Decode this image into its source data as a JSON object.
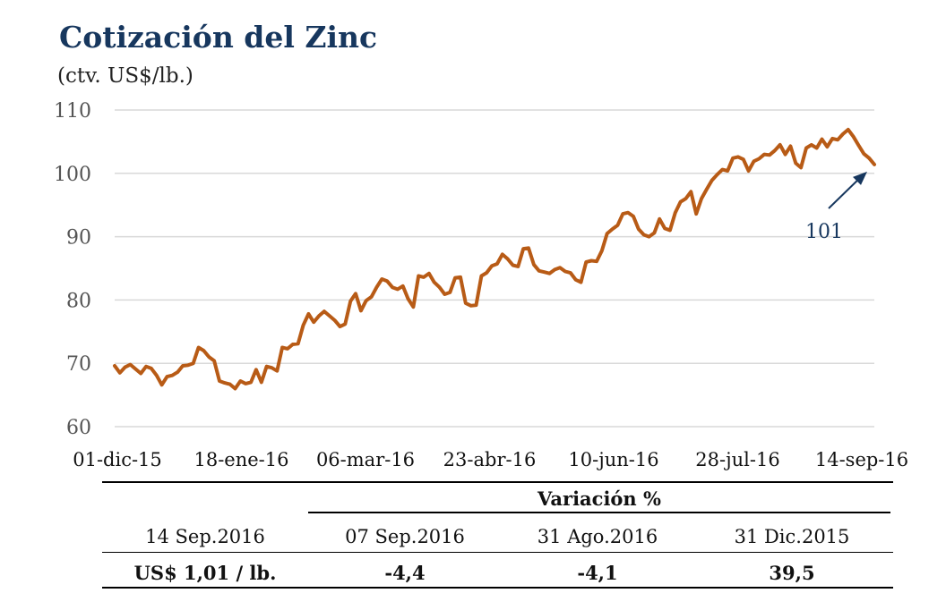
{
  "title": "Cotización del Zinc",
  "subtitle": "(ctv. US$/lb.)",
  "colors": {
    "line": "#b85b16",
    "grid": "#d9d9d9",
    "axis_text": "#555555",
    "title": "#17375e",
    "annotation": "#17375e"
  },
  "chart_data": {
    "type": "line",
    "title": "Cotización del Zinc",
    "ylabel": "(ctv. US$/lb.)",
    "xlabel": "",
    "ylim": [
      60,
      110
    ],
    "yticks": [
      "60",
      "70",
      "80",
      "90",
      "100",
      "110"
    ],
    "xticks": [
      "01-dic-15",
      "18-ene-16",
      "06-mar-16",
      "23-abr-16",
      "10-jun-16",
      "28-jul-16",
      "14-sep-16"
    ],
    "x_start": "01-dic-15",
    "x_end": "14-sep-16",
    "grid": "horizontal",
    "annotation": {
      "label": "101",
      "value": 101,
      "at": "14-sep-16"
    },
    "series": [
      {
        "values": [
          69.6,
          68.5,
          69.4,
          69.8,
          69.1,
          68.4,
          69.5,
          69.2,
          68.1,
          66.6,
          67.9,
          68.1,
          68.6,
          69.6,
          69.7,
          70.0,
          72.5,
          72.0,
          71.0,
          70.4,
          67.2,
          66.9,
          66.7,
          66.0,
          67.2,
          66.8,
          67.0,
          69.0,
          67.0,
          69.5,
          69.3,
          68.8,
          72.5,
          72.3,
          73.0,
          73.1,
          76.0,
          77.8,
          76.5,
          77.5,
          78.2,
          77.5,
          76.8,
          75.8,
          76.2,
          79.8,
          81.0,
          78.3,
          79.9,
          80.5,
          82.0,
          83.3,
          83.0,
          82.0,
          81.7,
          82.2,
          80.2,
          78.9,
          83.8,
          83.6,
          84.2,
          82.8,
          82.0,
          80.9,
          81.2,
          83.5,
          83.6,
          79.5,
          79.1,
          79.2,
          83.8,
          84.3,
          85.4,
          85.7,
          87.2,
          86.5,
          85.5,
          85.3,
          88.1,
          88.2,
          85.6,
          84.6,
          84.4,
          84.2,
          84.8,
          85.1,
          84.5,
          84.3,
          83.2,
          82.8,
          86.0,
          86.2,
          86.1,
          87.8,
          90.5,
          91.2,
          91.8,
          93.6,
          93.8,
          93.2,
          91.2,
          90.3,
          90.0,
          90.6,
          92.8,
          91.3,
          91.0,
          93.8,
          95.5,
          96.0,
          97.1,
          93.6,
          96.0,
          97.5,
          98.9,
          99.8,
          100.6,
          100.4,
          102.4,
          102.6,
          102.2,
          100.4,
          101.9,
          102.3,
          103.0,
          102.9,
          103.6,
          104.5,
          103.0,
          104.3,
          101.6,
          100.9,
          104.0,
          104.5,
          104.0,
          105.4,
          104.2,
          105.5,
          105.3,
          106.2,
          106.9,
          105.8,
          104.4,
          103.1,
          102.4,
          101.4
        ]
      }
    ]
  },
  "table": {
    "group_header": "Variación %",
    "columns": [
      "14 Sep.2016",
      "07 Sep.2016",
      "31 Ago.2016",
      "31 Dic.2015"
    ],
    "values": [
      "US$ 1,01 / lb.",
      "-4,4",
      "-4,1",
      "39,5"
    ]
  }
}
